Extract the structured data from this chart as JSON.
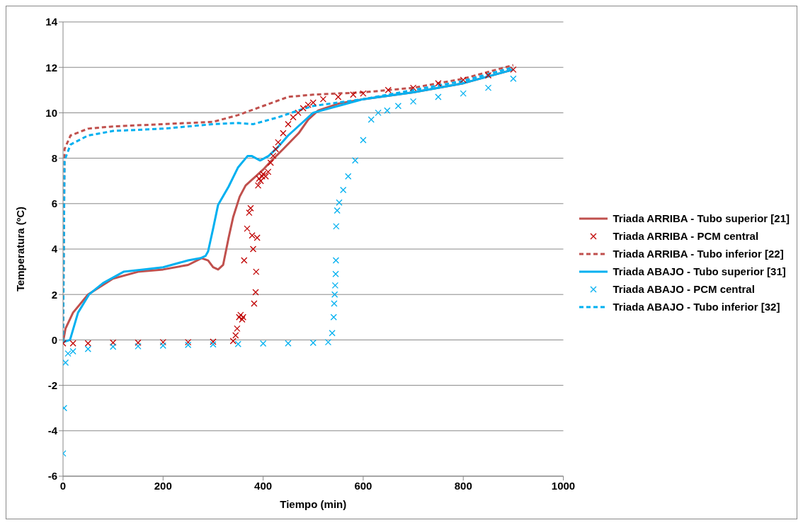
{
  "chart_data": {
    "type": "line",
    "xlabel": "Tiempo (min)",
    "ylabel": "Temperatura (ºC)",
    "xlim": [
      0,
      1000
    ],
    "xticks": [
      0,
      200,
      400,
      600,
      800,
      1000
    ],
    "ylim": [
      -6,
      14
    ],
    "yticks": [
      -6,
      -4,
      -2,
      0,
      2,
      4,
      6,
      8,
      10,
      12,
      14
    ],
    "grid": "y",
    "legend": "right",
    "series": [
      {
        "name": "Triada ARRIBA - Tubo superior [21]",
        "color": "#c0504d",
        "line_style": "solid",
        "x": [
          0,
          5,
          20,
          50,
          100,
          150,
          200,
          250,
          277,
          290,
          300,
          310,
          320,
          331,
          340,
          353,
          365,
          385,
          400,
          417,
          440,
          471,
          490,
          510,
          550,
          600,
          700,
          800,
          900
        ],
        "values": [
          -0.1,
          0.5,
          1.2,
          2.0,
          2.7,
          3.0,
          3.1,
          3.3,
          3.6,
          3.5,
          3.2,
          3.1,
          3.3,
          4.5,
          5.4,
          6.3,
          6.8,
          7.2,
          7.5,
          7.9,
          8.4,
          9.1,
          9.7,
          10.1,
          10.4,
          10.6,
          10.9,
          11.3,
          11.9
        ]
      },
      {
        "name": "Triada ARRIBA - PCM central",
        "type": "scatter",
        "color": "#c00000",
        "marker": "cross",
        "x": [
          0,
          20,
          50,
          100,
          150,
          200,
          250,
          300,
          340,
          345,
          348,
          352,
          355,
          358,
          360,
          362,
          368,
          372,
          375,
          378,
          380,
          382,
          385,
          386,
          388,
          390,
          392,
          395,
          398,
          400,
          405,
          410,
          415,
          420,
          425,
          430,
          440,
          450,
          460,
          470,
          480,
          490,
          500,
          520,
          550,
          580,
          600,
          650,
          700,
          750,
          800,
          850,
          900
        ],
        "values": [
          -0.15,
          -0.15,
          -0.15,
          -0.12,
          -0.12,
          -0.1,
          -0.1,
          -0.08,
          -0.05,
          0.2,
          0.5,
          1.0,
          1.1,
          0.9,
          1.0,
          3.5,
          4.9,
          5.6,
          5.8,
          4.6,
          4.0,
          1.6,
          2.1,
          3.0,
          4.5,
          6.8,
          7.1,
          7.0,
          7.2,
          7.3,
          7.2,
          7.4,
          7.8,
          8.1,
          8.4,
          8.7,
          9.1,
          9.5,
          9.8,
          10.0,
          10.2,
          10.35,
          10.45,
          10.6,
          10.7,
          10.8,
          10.85,
          11.0,
          11.1,
          11.3,
          11.45,
          11.65,
          11.9
        ]
      },
      {
        "name": "Triada ARRIBA - Tubo inferior [22]",
        "color": "#c0504d",
        "line_style": "dashed",
        "x": [
          0,
          3,
          15,
          50,
          100,
          200,
          300,
          350,
          400,
          450,
          500,
          600,
          700,
          800,
          900
        ],
        "values": [
          -0.1,
          8.4,
          9.0,
          9.3,
          9.4,
          9.5,
          9.6,
          9.9,
          10.3,
          10.7,
          10.8,
          10.9,
          11.1,
          11.5,
          12.1
        ]
      },
      {
        "name": "Triada ABAJO - Tubo superior [31]",
        "color": "#00b0f0",
        "line_style": "solid",
        "x": [
          0,
          14,
          30,
          52,
          80,
          121,
          160,
          200,
          250,
          275,
          285,
          290,
          300,
          310,
          331,
          350,
          369,
          377,
          394,
          411,
          430,
          450,
          480,
          500,
          550,
          600,
          700,
          800,
          900
        ],
        "values": [
          -0.1,
          0.0,
          1.2,
          2.0,
          2.5,
          3.0,
          3.1,
          3.2,
          3.5,
          3.6,
          3.7,
          3.9,
          4.9,
          5.95,
          6.75,
          7.6,
          8.1,
          8.1,
          7.9,
          8.1,
          8.5,
          9.0,
          9.6,
          10.0,
          10.3,
          10.6,
          10.9,
          11.3,
          11.9
        ]
      },
      {
        "name": "Triada ABAJO - PCM central",
        "type": "scatter",
        "color": "#00b0f0",
        "marker": "cross",
        "x": [
          0,
          2,
          5,
          10,
          20,
          50,
          100,
          150,
          200,
          250,
          300,
          350,
          400,
          450,
          500,
          530,
          538,
          541,
          542,
          543,
          544,
          545,
          545.5,
          546,
          548,
          552,
          560,
          570,
          584,
          600,
          616,
          630,
          648,
          670,
          700,
          750,
          800,
          850,
          900
        ],
        "values": [
          -5.0,
          -3.0,
          -1.0,
          -0.6,
          -0.5,
          -0.4,
          -0.3,
          -0.28,
          -0.25,
          -0.22,
          -0.2,
          -0.18,
          -0.16,
          -0.15,
          -0.13,
          -0.1,
          0.3,
          1.0,
          1.6,
          2.0,
          2.4,
          2.9,
          3.5,
          5.0,
          5.7,
          6.05,
          6.6,
          7.2,
          7.9,
          8.8,
          9.7,
          10.0,
          10.1,
          10.3,
          10.5,
          10.7,
          10.85,
          11.1,
          11.5
        ]
      },
      {
        "name": "Triada ABAJO - Tubo inferior [32]",
        "color": "#00b0f0",
        "line_style": "dashed",
        "x": [
          0,
          3,
          15,
          50,
          100,
          200,
          300,
          350,
          380,
          430,
          470,
          500,
          600,
          700,
          800,
          900
        ],
        "values": [
          -0.1,
          7.9,
          8.6,
          9.0,
          9.2,
          9.3,
          9.5,
          9.55,
          9.5,
          9.8,
          10.1,
          10.3,
          10.6,
          11.0,
          11.4,
          12.0
        ]
      }
    ]
  }
}
